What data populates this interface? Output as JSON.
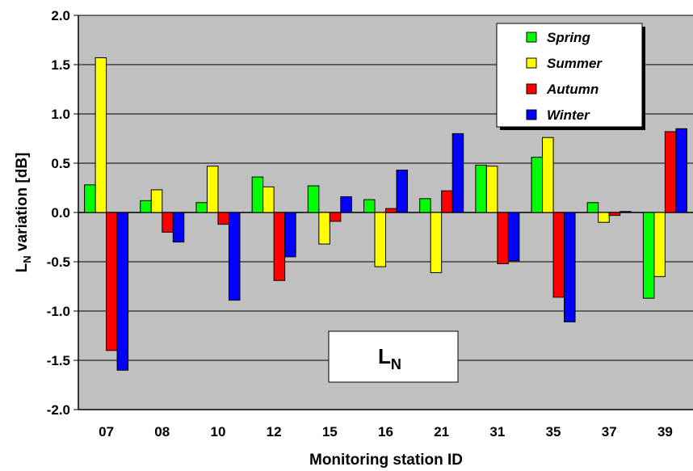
{
  "chart_data": {
    "type": "bar",
    "categories": [
      "07",
      "08",
      "10",
      "12",
      "15",
      "16",
      "21",
      "31",
      "35",
      "37",
      "39"
    ],
    "series": [
      {
        "name": "Spring",
        "color": "#00ff00",
        "values": [
          0.28,
          0.12,
          0.1,
          0.36,
          0.27,
          0.13,
          0.14,
          0.48,
          0.56,
          0.1,
          -0.87
        ]
      },
      {
        "name": "Summer",
        "color": "#ffff00",
        "values": [
          1.57,
          0.23,
          0.47,
          0.26,
          -0.32,
          -0.55,
          -0.61,
          0.47,
          0.76,
          -0.1,
          -0.65
        ]
      },
      {
        "name": "Autumn",
        "color": "#ff0000",
        "values": [
          -1.4,
          -0.2,
          -0.12,
          -0.69,
          -0.09,
          0.04,
          0.22,
          -0.52,
          -0.86,
          -0.03,
          0.82
        ]
      },
      {
        "name": "Winter",
        "color": "#0000ff",
        "values": [
          -1.6,
          -0.3,
          -0.89,
          -0.45,
          0.16,
          0.43,
          0.8,
          -0.49,
          -1.11,
          0.01,
          0.85
        ]
      }
    ],
    "xlabel": "Monitoring station ID",
    "ylabel_main": "L",
    "ylabel_sub": "N",
    "ylabel_rest": " variation [dB]",
    "ylim": [
      -2.0,
      2.0
    ],
    "yticks": [
      2.0,
      1.5,
      1.0,
      0.5,
      0.0,
      -0.5,
      -1.0,
      -1.5,
      -2.0
    ],
    "grid": true,
    "legend": "top-right",
    "annotation": {
      "main": "L",
      "sub": "N"
    },
    "plot_background": "#c0c0c0"
  }
}
